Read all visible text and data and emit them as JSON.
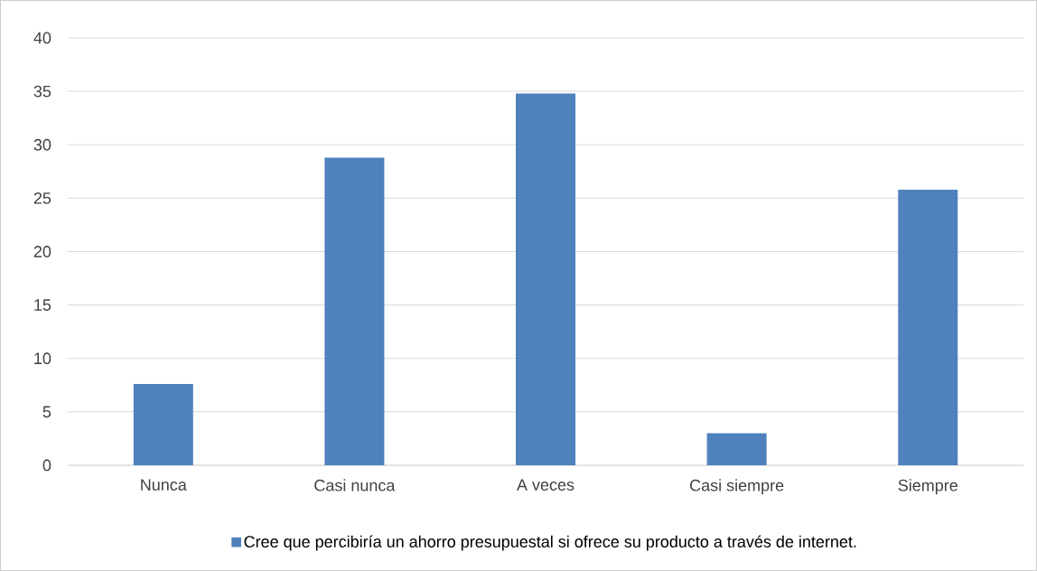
{
  "chart_data": {
    "type": "bar",
    "categories": [
      "Nunca",
      "Casi nunca",
      "A veces",
      "Casi siempre",
      "Siempre"
    ],
    "series": [
      {
        "name": "Cree que percibiría un ahorro presupuestal si ofrece su producto a través de internet.",
        "color": "#4f81bd",
        "values": [
          7.6,
          28.8,
          34.8,
          3,
          25.8
        ]
      }
    ],
    "ylim": [
      0,
      40
    ],
    "yticks": [
      0,
      5,
      10,
      15,
      20,
      25,
      30,
      35,
      40
    ],
    "grid": "y",
    "legend": "bottom"
  }
}
